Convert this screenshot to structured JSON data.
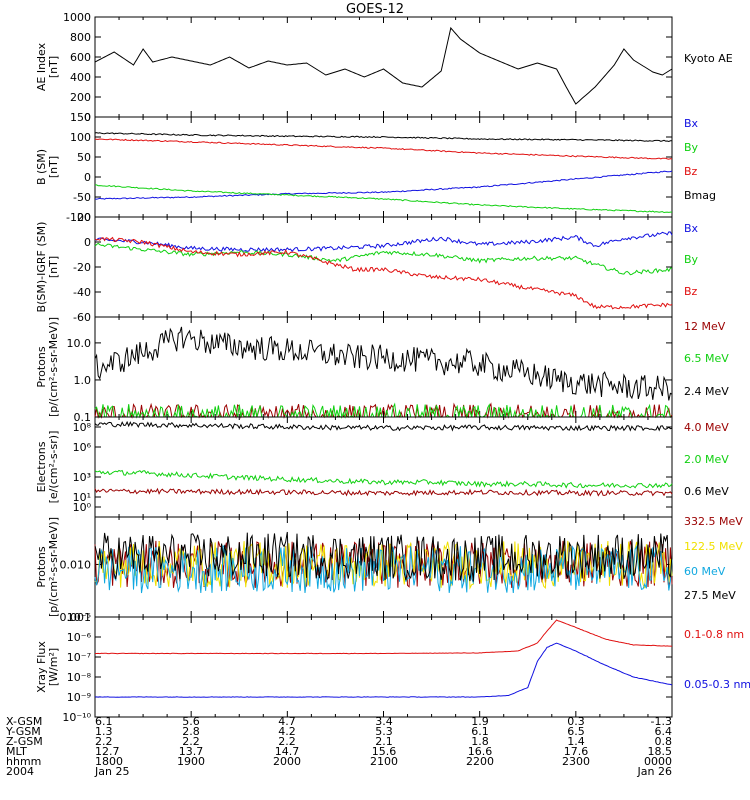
{
  "title": "GOES-12",
  "colors": {
    "black": "#000000",
    "red": "#e01010",
    "green": "#10d010",
    "blue": "#1010e0",
    "darkred": "#9a0000",
    "cyan": "#10a8e0",
    "yellow": "#f0e000"
  },
  "time_axis": {
    "tick_labels": [
      "1800",
      "1900",
      "2000",
      "2100",
      "2200",
      "2300",
      "0000"
    ],
    "date_start": "Jan 25",
    "date_end": "Jan 26",
    "year": "2004"
  },
  "footer": {
    "row_labels": [
      "X-GSM",
      "Y-GSM",
      "Z-GSM",
      "MLT",
      "hhmm",
      "2004"
    ],
    "rows": [
      [
        "6.1",
        "5.6",
        "4.7",
        "3.4",
        "1.9",
        "0.3",
        "-1.3"
      ],
      [
        "1.3",
        "2.8",
        "4.2",
        "5.3",
        "6.1",
        "6.5",
        "6.4"
      ],
      [
        "2.2",
        "2.2",
        "2.2",
        "2.1",
        "1.8",
        "1.4",
        "0.8"
      ],
      [
        "12.7",
        "13.7",
        "14.7",
        "15.6",
        "16.6",
        "17.6",
        "18.5"
      ],
      [
        "1800",
        "1900",
        "2000",
        "2100",
        "2200",
        "2300",
        "0000"
      ],
      [
        "Jan 25",
        "",
        "",
        "",
        "",
        "",
        "Jan 26"
      ]
    ]
  },
  "chart_data": [
    {
      "type": "line",
      "ylabel": "AE Index [nT]",
      "ylim": [
        0,
        1000
      ],
      "log": false,
      "yticks": [
        0,
        200,
        400,
        600,
        800,
        1000
      ],
      "yticklabels": [
        "0",
        "200",
        "400",
        "600",
        "800",
        "1000"
      ],
      "series": [
        {
          "name": "Kyoto AE",
          "color": "#000000",
          "x": [
            18.0,
            18.2,
            18.4,
            18.5,
            18.6,
            18.8,
            19.0,
            19.2,
            19.4,
            19.6,
            19.8,
            20.0,
            20.2,
            20.4,
            20.6,
            20.8,
            21.0,
            21.2,
            21.4,
            21.6,
            21.7,
            21.8,
            22.0,
            22.2,
            22.4,
            22.6,
            22.8,
            22.9,
            23.0,
            23.2,
            23.4,
            23.5,
            23.6,
            23.8,
            23.9,
            24.0
          ],
          "y": [
            550,
            650,
            520,
            680,
            550,
            600,
            560,
            520,
            600,
            490,
            560,
            520,
            540,
            420,
            480,
            400,
            480,
            340,
            300,
            460,
            890,
            780,
            640,
            560,
            480,
            540,
            480,
            300,
            130,
            300,
            520,
            680,
            570,
            450,
            420,
            480
          ]
        }
      ]
    },
    {
      "type": "line",
      "ylabel": "B (SM) [nT]",
      "ylim": [
        -100,
        150
      ],
      "log": false,
      "yticks": [
        -100,
        -50,
        0,
        50,
        100,
        150
      ],
      "yticklabels": [
        "-100",
        "-50",
        "0",
        "50",
        "100",
        "150"
      ],
      "series": [
        {
          "name": "Bx",
          "color": "#1010e0",
          "x": [
            18.0,
            19.0,
            20.0,
            21.0,
            22.0,
            23.0,
            24.0
          ],
          "y": [
            -55,
            -50,
            -42,
            -38,
            -25,
            -5,
            15
          ]
        },
        {
          "name": "By",
          "color": "#10d010",
          "x": [
            18.0,
            19.0,
            20.0,
            21.0,
            22.0,
            23.0,
            24.0
          ],
          "y": [
            -20,
            -35,
            -45,
            -55,
            -70,
            -80,
            -88
          ]
        },
        {
          "name": "Bz",
          "color": "#e01010",
          "x": [
            18.0,
            19.0,
            20.0,
            21.0,
            22.0,
            23.0,
            24.0
          ],
          "y": [
            95,
            88,
            80,
            72,
            60,
            52,
            45
          ]
        },
        {
          "name": "Bmag",
          "color": "#000000",
          "x": [
            18.0,
            19.0,
            20.0,
            21.0,
            22.0,
            23.0,
            24.0
          ],
          "y": [
            110,
            105,
            102,
            100,
            95,
            93,
            90
          ]
        }
      ]
    },
    {
      "type": "line",
      "ylabel": "B (SM)-IGRF (SM) [nT]",
      "ylim": [
        -60,
        20
      ],
      "log": false,
      "yticks": [
        -60,
        -40,
        -20,
        0,
        20
      ],
      "yticklabels": [
        "-60",
        "-40",
        "-20",
        "0",
        "20"
      ],
      "series": [
        {
          "name": "Bx",
          "color": "#1010e0",
          "x": [
            18.0,
            18.5,
            19.0,
            19.5,
            20.0,
            20.5,
            21.0,
            21.3,
            21.6,
            22.0,
            22.5,
            23.0,
            23.2,
            23.5,
            24.0
          ],
          "y": [
            2,
            0,
            -5,
            -6,
            -6,
            -5,
            -3,
            0,
            3,
            -2,
            0,
            4,
            -3,
            3,
            7
          ]
        },
        {
          "name": "By",
          "color": "#10d010",
          "x": [
            18.0,
            18.5,
            19.0,
            19.5,
            20.0,
            20.5,
            21.0,
            21.5,
            22.0,
            22.5,
            23.0,
            23.2,
            23.5,
            24.0
          ],
          "y": [
            -2,
            -6,
            -10,
            -8,
            -10,
            -15,
            -8,
            -10,
            -15,
            -13,
            -13,
            -18,
            -25,
            -22
          ]
        },
        {
          "name": "Bz",
          "color": "#e01010",
          "x": [
            18.0,
            18.5,
            19.0,
            19.5,
            20.0,
            20.3,
            20.7,
            21.0,
            21.5,
            22.0,
            22.5,
            23.0,
            23.2,
            23.5,
            24.0
          ],
          "y": [
            3,
            0,
            -8,
            -10,
            -8,
            -14,
            -22,
            -22,
            -28,
            -30,
            -37,
            -43,
            -52,
            -52,
            -50
          ]
        }
      ]
    },
    {
      "type": "line",
      "ylabel": "Protons [p/(cm²-s-sr-MeV)]",
      "ylim": [
        0.1,
        50
      ],
      "log": true,
      "yticks": [
        0.1,
        1,
        10
      ],
      "yticklabels": [
        "0.1",
        "1.0",
        "10.0"
      ],
      "series": [
        {
          "name": "12 MeV",
          "color": "#9a0000",
          "x": [
            18.0,
            19.9,
            21.5,
            23.2,
            24.0
          ],
          "y": [
            0.1,
            0.1,
            0.1,
            0.1,
            0.1
          ]
        },
        {
          "name": "6.5 MeV",
          "color": "#10d010",
          "x": [
            18.0,
            19.0,
            20.0,
            21.0,
            22.0,
            23.0,
            24.0
          ],
          "y": [
            0.1,
            0.1,
            0.1,
            0.1,
            0.1,
            0.1,
            0.1
          ]
        },
        {
          "name": "2.4 MeV",
          "color": "#000000",
          "x": [
            18.0,
            18.3,
            18.6,
            18.9,
            19.2,
            19.5,
            19.8,
            20.1,
            20.4,
            20.7,
            21.0,
            21.3,
            21.6,
            21.9,
            22.2,
            22.5,
            22.8,
            23.1,
            23.4,
            23.7,
            24.0
          ],
          "y": [
            2.0,
            3.5,
            7.0,
            15.0,
            10.0,
            8.0,
            7.0,
            6.0,
            5.0,
            4.0,
            4.0,
            3.5,
            3.0,
            3.0,
            2.0,
            1.5,
            1.0,
            0.8,
            0.7,
            0.6,
            0.6
          ]
        }
      ]
    },
    {
      "type": "line",
      "ylabel": "Electrons [e/(cm²-s-sr)]",
      "ylim": [
        0.1,
        1000000000
      ],
      "log": true,
      "yticks": [
        1,
        10,
        1000,
        1000000,
        100000000
      ],
      "yticklabels": [
        "10⁰",
        "10¹",
        "10³",
        "10⁶",
        "10⁸"
      ],
      "series": [
        {
          "name": "4.0 MeV",
          "color": "#9a0000",
          "x": [
            18.0,
            19.0,
            20.0,
            21.0,
            22.0,
            23.0,
            24.0
          ],
          "y": [
            40,
            35,
            30,
            25,
            30,
            25,
            25
          ]
        },
        {
          "name": "2.0 MeV",
          "color": "#10d010",
          "x": [
            18.0,
            18.5,
            19.0,
            19.5,
            20.0,
            20.5,
            21.0,
            21.5,
            22.0,
            22.5,
            23.0,
            23.5,
            24.0
          ],
          "y": [
            3000,
            2500,
            1500,
            900,
            600,
            400,
            300,
            300,
            200,
            200,
            150,
            150,
            150
          ]
        },
        {
          "name": "0.6 MeV",
          "color": "#000000",
          "x": [
            18.0,
            19.0,
            20.0,
            21.0,
            22.0,
            23.0,
            24.0
          ],
          "y": [
            200000000,
            150000000,
            100000000,
            80000000,
            90000000,
            80000000,
            80000000
          ]
        }
      ]
    },
    {
      "type": "line",
      "ylabel": "Protons [p/(cm²-s-sr-MeV)]",
      "ylim": [
        0.001,
        0.08
      ],
      "log": true,
      "yticks": [
        0.001,
        0.01
      ],
      "yticklabels": [
        "0.001",
        "0.010"
      ],
      "series": [
        {
          "name": "332.5 MeV",
          "color": "#9a0000",
          "x": [
            18.0,
            24.0
          ],
          "y": [
            0.01,
            0.01
          ]
        },
        {
          "name": "122.5 MeV",
          "color": "#f0e000",
          "x": [
            18.0,
            24.0
          ],
          "y": [
            0.01,
            0.01
          ]
        },
        {
          "name": "60 MeV",
          "color": "#10a8e0",
          "x": [
            18.0,
            19.0,
            20.0,
            21.0,
            22.0,
            23.0,
            24.0
          ],
          "y": [
            0.008,
            0.008,
            0.008,
            0.008,
            0.008,
            0.008,
            0.008
          ]
        },
        {
          "name": "27.5 MeV",
          "color": "#000000",
          "x": [
            18.0,
            19.0,
            20.0,
            21.0,
            22.0,
            23.0,
            24.0
          ],
          "y": [
            0.015,
            0.014,
            0.015,
            0.014,
            0.013,
            0.015,
            0.014
          ]
        }
      ]
    },
    {
      "type": "line",
      "ylabel": "Xray Flux [W/m²]",
      "ylim": [
        1e-10,
        1e-05
      ],
      "log": true,
      "yticks": [
        1e-10,
        1e-09,
        1e-08,
        1e-07,
        1e-06,
        1e-05
      ],
      "yticklabels": [
        "10⁻¹⁰",
        "10⁻⁹",
        "10⁻⁸",
        "10⁻⁷",
        "10⁻⁶",
        "10⁻⁵"
      ],
      "series": [
        {
          "name": "0.1-0.8 nm",
          "color": "#e01010",
          "x": [
            18.0,
            19.0,
            20.0,
            21.0,
            22.0,
            22.4,
            22.6,
            22.7,
            22.8,
            23.0,
            23.3,
            23.6,
            24.0
          ],
          "y": [
            1.5e-07,
            1.5e-07,
            1.5e-07,
            1.5e-07,
            1.6e-07,
            2e-07,
            5e-07,
            2e-06,
            7e-06,
            3e-06,
            8e-07,
            4e-07,
            3.5e-07
          ]
        },
        {
          "name": "0.05-0.3 nm",
          "color": "#1010e0",
          "x": [
            18.0,
            19.0,
            20.0,
            21.0,
            22.0,
            22.3,
            22.5,
            22.6,
            22.7,
            22.8,
            23.0,
            23.3,
            23.6,
            24.0
          ],
          "y": [
            1e-09,
            1e-09,
            1e-09,
            1e-09,
            1e-09,
            1.2e-09,
            3e-09,
            6e-08,
            3e-07,
            5e-07,
            2e-07,
            4e-08,
            1e-08,
            4e-09
          ]
        }
      ]
    }
  ]
}
